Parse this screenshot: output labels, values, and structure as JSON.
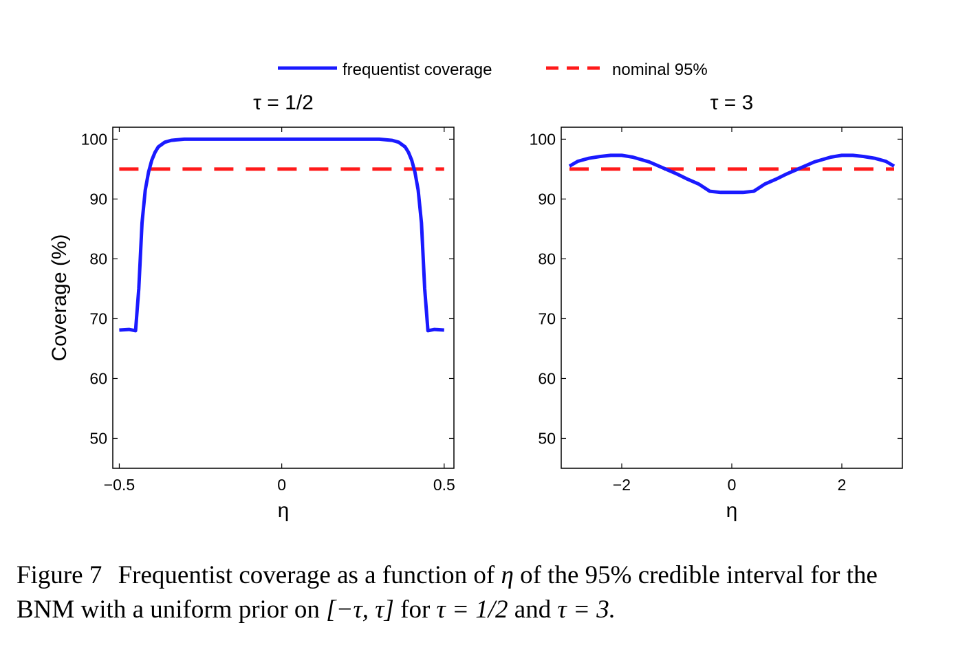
{
  "legend": {
    "items": [
      {
        "label": "frequentist coverage",
        "color": "#1a1aff",
        "style": "solid"
      },
      {
        "label": "nominal 95%",
        "color": "#ff1a1a",
        "style": "dashed"
      }
    ]
  },
  "caption": {
    "label": "Figure 7",
    "line1_a": "Frequentist coverage as a function of",
    "eta": "η",
    "line1_b": "of the 95% credible interval for the",
    "line2_a": "BNM with a uniform prior on",
    "interval": "[−τ, τ]",
    "line2_b": "for",
    "tau1": "τ = 1/2",
    "and": "and",
    "tau2": "τ = 3."
  },
  "chart_data": [
    {
      "type": "line",
      "title": "τ = 1/2",
      "xlabel": "η",
      "ylabel": "Coverage (%)",
      "xlim": [
        -0.52,
        0.53
      ],
      "ylim": [
        45,
        102
      ],
      "xticks": [
        -0.5,
        0,
        0.5
      ],
      "xtick_labels": [
        "−0.5",
        "0",
        "0.5"
      ],
      "yticks": [
        50,
        60,
        70,
        80,
        90,
        100
      ],
      "ytick_labels": [
        "50",
        "60",
        "70",
        "80",
        "90",
        "100"
      ],
      "series": [
        {
          "name": "frequentist coverage",
          "color": "#1a1aff",
          "x": [
            -0.5,
            -0.47,
            -0.45,
            -0.44,
            -0.43,
            -0.42,
            -0.41,
            -0.4,
            -0.39,
            -0.38,
            -0.36,
            -0.34,
            -0.3,
            -0.2,
            0,
            0.2,
            0.3,
            0.34,
            0.36,
            0.38,
            0.39,
            0.4,
            0.41,
            0.42,
            0.43,
            0.44,
            0.45,
            0.47,
            0.5
          ],
          "y": [
            68.1,
            68.2,
            68.0,
            75.0,
            86.0,
            91.5,
            94.5,
            96.5,
            97.8,
            98.7,
            99.5,
            99.8,
            100,
            100,
            100,
            100,
            100,
            99.8,
            99.5,
            98.7,
            97.8,
            96.5,
            94.5,
            91.5,
            86.0,
            75.0,
            68.0,
            68.2,
            68.1
          ]
        },
        {
          "name": "nominal 95%",
          "color": "#ff1a1a",
          "dashed": true,
          "x": [
            -0.5,
            0.5
          ],
          "y": [
            95,
            95
          ]
        }
      ]
    },
    {
      "type": "line",
      "title": "τ = 3",
      "xlabel": "η",
      "ylabel": "",
      "xlim": [
        -3.1,
        3.1
      ],
      "ylim": [
        45,
        102
      ],
      "xticks": [
        -2,
        0,
        2
      ],
      "xtick_labels": [
        "−2",
        "0",
        "2"
      ],
      "yticks": [
        50,
        60,
        70,
        80,
        90,
        100
      ],
      "ytick_labels": [
        "50",
        "60",
        "70",
        "80",
        "90",
        "100"
      ],
      "series": [
        {
          "name": "frequentist coverage",
          "color": "#1a1aff",
          "x": [
            -2.95,
            -2.8,
            -2.6,
            -2.4,
            -2.2,
            -2.0,
            -1.8,
            -1.5,
            -1.2,
            -1.0,
            -0.8,
            -0.6,
            -0.4,
            -0.2,
            0,
            0.2,
            0.4,
            0.6,
            0.8,
            1.0,
            1.2,
            1.5,
            1.8,
            2.0,
            2.2,
            2.4,
            2.6,
            2.8,
            2.95
          ],
          "y": [
            95.5,
            96.3,
            96.8,
            97.1,
            97.3,
            97.3,
            97.0,
            96.2,
            95.0,
            94.2,
            93.3,
            92.5,
            91.3,
            91.1,
            91.1,
            91.1,
            91.3,
            92.5,
            93.3,
            94.2,
            95.0,
            96.2,
            97.0,
            97.3,
            97.3,
            97.1,
            96.8,
            96.3,
            95.5
          ]
        },
        {
          "name": "nominal 95%",
          "color": "#ff1a1a",
          "dashed": true,
          "x": [
            -2.95,
            2.95
          ],
          "y": [
            95,
            95
          ]
        }
      ]
    }
  ]
}
